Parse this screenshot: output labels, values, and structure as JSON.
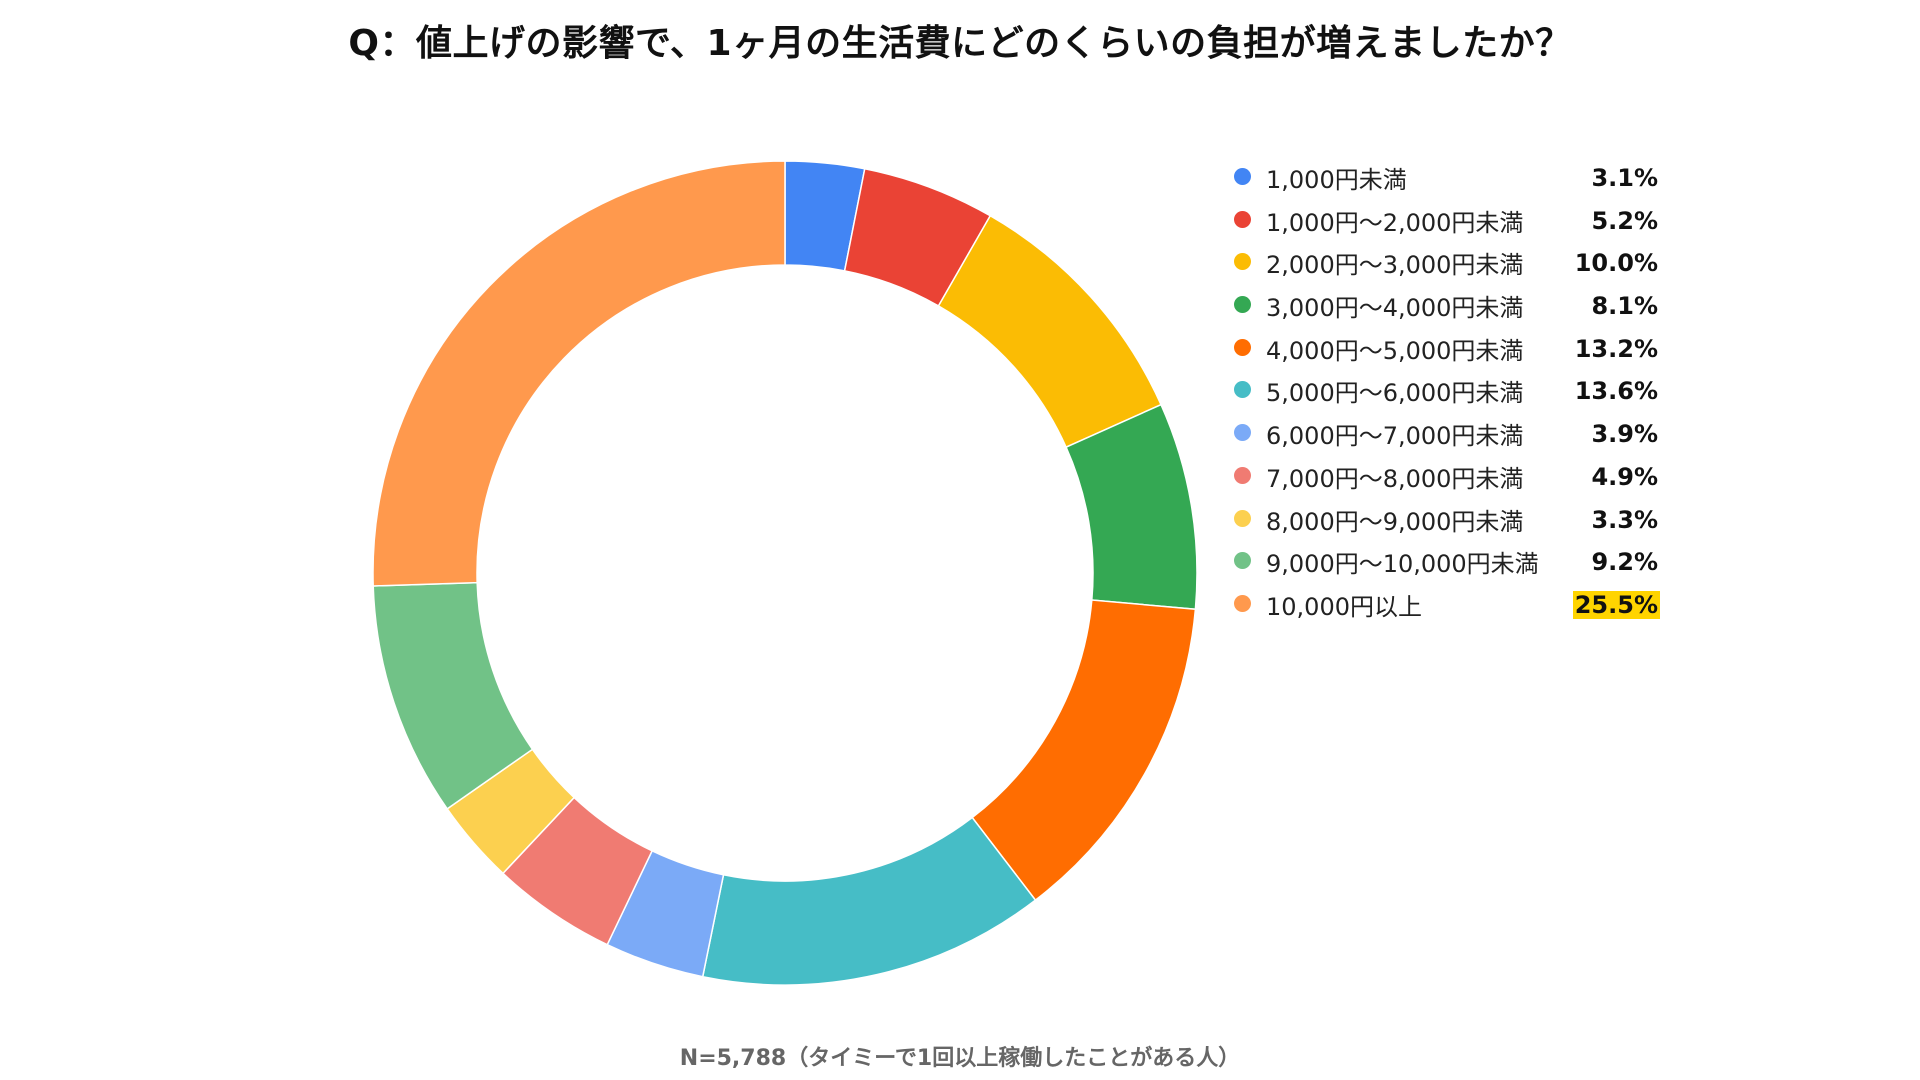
{
  "chart_data": {
    "type": "pie",
    "title": "Q：値上げの影響で、1ヶ月の生活費にどのくらいの負担が増えましたか？",
    "categories": [
      "1,000円未満",
      "1,000円〜2,000円未満",
      "2,000円〜3,000円未満",
      "3,000円〜4,000円未満",
      "4,000円〜5,000円未満",
      "5,000円〜6,000円未満",
      "6,000円〜7,000円未満",
      "7,000円〜8,000円未満",
      "8,000円〜9,000円未満",
      "9,000円〜10,000円未満",
      "10,000円以上"
    ],
    "values": [
      3.1,
      5.2,
      10.0,
      8.1,
      13.2,
      13.6,
      3.9,
      4.9,
      3.3,
      9.2,
      25.5
    ],
    "value_labels": [
      "3.1%",
      "5.2%",
      "10.0%",
      "8.1%",
      "13.2%",
      "13.6%",
      "3.9%",
      "4.9%",
      "3.3%",
      "9.2%",
      "25.5%"
    ],
    "colors": [
      "#4285f4",
      "#ea4335",
      "#fbbc04",
      "#34a853",
      "#ff6d01",
      "#46bdc6",
      "#7baaf7",
      "#f07b72",
      "#fcd04f",
      "#71c287",
      "#ff994d"
    ],
    "highlight_color": "#ffd400",
    "highlighted_index": 10,
    "donut": true,
    "legend_position": "right",
    "note": "N=5,788（タイミーで1回以上稼働したことがある人）"
  }
}
